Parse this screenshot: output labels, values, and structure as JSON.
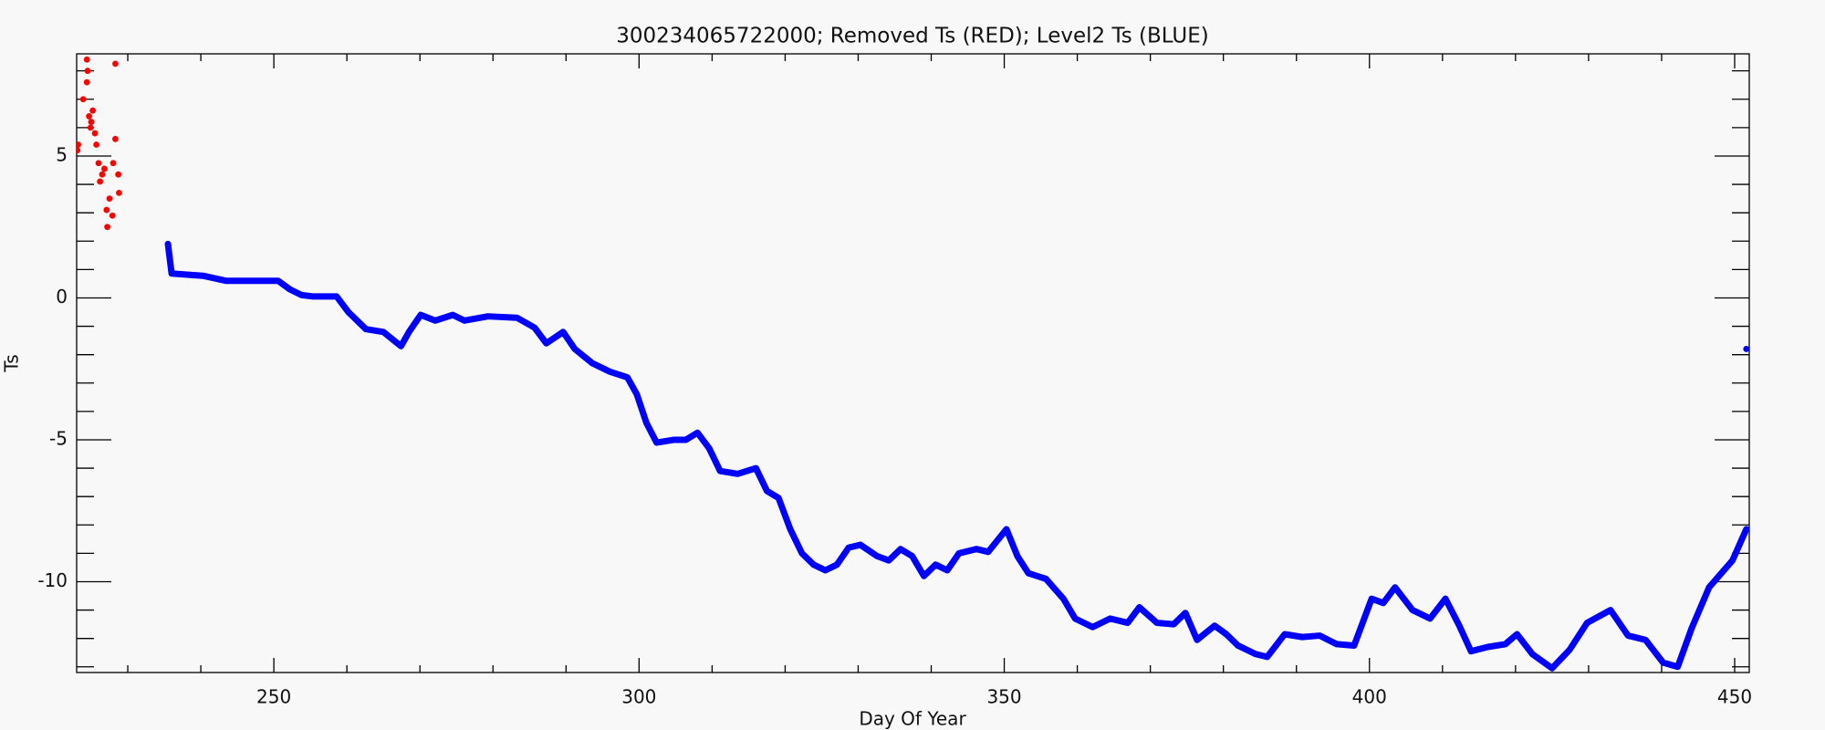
{
  "chart_data": {
    "type": "scatter",
    "title": "300234065722000; Removed Ts (RED); Level2 Ts (BLUE)",
    "x_label": "Day Of Year",
    "y_label": "Ts",
    "xlim": [
      223,
      452
    ],
    "ylim": [
      -13.2,
      8.6
    ],
    "xticks": [
      250,
      300,
      350,
      400,
      450
    ],
    "yticks": [
      -10,
      -5,
      0,
      5
    ],
    "xminorticks": [
      230,
      240,
      260,
      270,
      280,
      290,
      310,
      320,
      330,
      340,
      360,
      370,
      380,
      390,
      410,
      420,
      430,
      440
    ],
    "yminorticks": [
      -13,
      -12,
      -11,
      -9,
      -8,
      -7,
      -6,
      -4,
      -3,
      -2,
      -1,
      1,
      2,
      3,
      4,
      6,
      7,
      8
    ],
    "series": [
      {
        "color": "#ff0000",
        "mode": "points",
        "x": [
          223.1,
          223.2,
          223.9,
          224.4,
          224.4,
          224.7,
          224.9,
          225.2,
          225.5,
          226,
          226.2,
          226.5,
          226.8,
          227.1,
          227.2,
          227.5,
          227.9,
          228,
          228.3,
          228.3,
          228.7,
          228.8,
          224.5,
          225,
          225.7
        ],
        "values": [
          5.2,
          5.4,
          7.0,
          8.4,
          7.6,
          6.4,
          6.0,
          6.6,
          5.8,
          4.75,
          4.1,
          4.35,
          4.55,
          3.1,
          2.5,
          3.5,
          2.9,
          4.75,
          8.25,
          5.6,
          4.35,
          3.7,
          8.0,
          6.2,
          5.4
        ]
      },
      {
        "color": "#0000ff",
        "mode": "lines",
        "x": [
          235.5,
          236,
          240.3,
          243.5,
          250.6,
          252.2,
          253.8,
          255.4,
          258.6,
          260.2,
          262.6,
          265,
          267.4,
          268.5,
          270.1,
          272.1,
          274.5,
          276.1,
          279.3,
          283.3,
          285.7,
          287.3,
          289.6,
          291.2,
          293.6,
          296,
          298.4,
          299.7,
          301,
          302.4,
          304.8,
          306.4,
          308,
          309.6,
          311.1,
          313.5,
          316,
          317.5,
          319.1,
          320.7,
          322.3,
          323.9,
          325.5,
          327.1,
          328.7,
          330.3,
          332.6,
          334.2,
          335.8,
          337.4,
          339,
          340.6,
          342.2,
          343.8,
          346.2,
          347.8,
          350.3,
          351.8,
          353.3,
          355.7,
          358.1,
          359.7,
          362.1,
          364.5,
          366.9,
          368.5,
          370.9,
          373.2,
          374.8,
          376.4,
          378.8,
          380.4,
          382,
          384.4,
          386,
          388.4,
          390.8,
          393.2,
          395.5,
          397.9,
          400.3,
          401.9,
          403.5,
          405.9,
          408.3,
          410.4,
          412.3,
          413.9,
          416.2,
          418.6,
          420.2,
          422.3,
          425,
          427.4,
          429.8,
          433,
          435.4,
          437.8,
          440.2,
          442.2,
          444.1,
          446.5,
          449.7,
          451.6
        ],
        "values": [
          1.9,
          0.86,
          0.78,
          0.6,
          0.6,
          0.3,
          0.1,
          0.05,
          0.05,
          -0.5,
          -1.1,
          -1.2,
          -1.7,
          -1.2,
          -0.6,
          -0.8,
          -0.6,
          -0.8,
          -0.65,
          -0.7,
          -1.05,
          -1.6,
          -1.2,
          -1.8,
          -2.3,
          -2.6,
          -2.8,
          -3.4,
          -4.4,
          -5.1,
          -5.0,
          -5.0,
          -4.75,
          -5.3,
          -6.1,
          -6.2,
          -6.0,
          -6.8,
          -7.05,
          -8.15,
          -9.0,
          -9.4,
          -9.6,
          -9.4,
          -8.8,
          -8.7,
          -9.1,
          -9.25,
          -8.85,
          -9.1,
          -9.8,
          -9.4,
          -9.6,
          -9.0,
          -8.85,
          -8.95,
          -8.15,
          -9.1,
          -9.7,
          -9.9,
          -10.6,
          -11.3,
          -11.6,
          -11.3,
          -11.45,
          -10.9,
          -11.45,
          -11.5,
          -11.1,
          -12.05,
          -11.55,
          -11.85,
          -12.25,
          -12.55,
          -12.65,
          -11.85,
          -11.95,
          -11.9,
          -12.2,
          -12.25,
          -10.6,
          -10.75,
          -10.2,
          -11.0,
          -11.3,
          -10.6,
          -11.55,
          -12.45,
          -12.3,
          -12.2,
          -11.85,
          -12.55,
          -13.05,
          -12.4,
          -11.45,
          -11.0,
          -11.9,
          -12.05,
          -12.85,
          -13.0,
          -11.65,
          -10.2,
          -9.25,
          -8.15
        ]
      },
      {
        "color": "#0000ff",
        "mode": "points",
        "x": [
          451.6
        ],
        "values": [
          -1.8
        ]
      }
    ]
  }
}
